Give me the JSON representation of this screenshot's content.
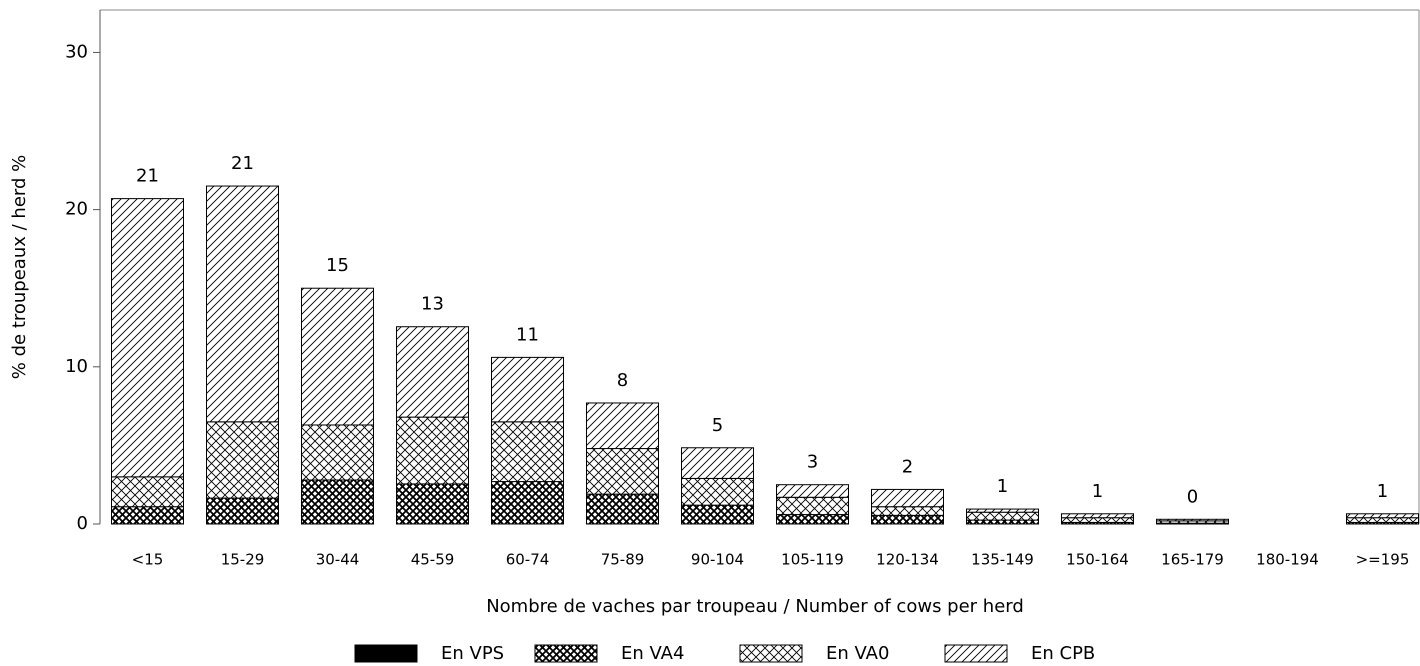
{
  "chart_data": {
    "type": "stacked_bar",
    "xlabel": "Nombre de vaches par troupeau / Number of cows per herd",
    "ylabel": "% de troupeaux / herd %",
    "categories": [
      "<15",
      "15-29",
      "30-44",
      "45-59",
      "60-74",
      "75-89",
      "90-104",
      "105-119",
      "120-134",
      "135-149",
      "150-164",
      "165-179",
      "180-194",
      ">=195"
    ],
    "series": [
      {
        "name": "En VPS",
        "color": "#000000",
        "pattern": "solid",
        "values": [
          0,
          0,
          0,
          0,
          0,
          0,
          0,
          0,
          0,
          0,
          0,
          0,
          0,
          0
        ]
      },
      {
        "name": "En VA4",
        "color": "#000000",
        "pattern": "crosshatch-dense",
        "values": [
          1.1,
          1.65,
          2.8,
          2.55,
          2.7,
          1.9,
          1.2,
          0.6,
          0.55,
          0.25,
          0.1,
          0.05,
          0,
          0.1
        ]
      },
      {
        "name": "En VA0",
        "color": "#000000",
        "pattern": "crosshatch",
        "values": [
          1.9,
          4.85,
          3.5,
          4.25,
          3.8,
          2.9,
          1.7,
          1.1,
          0.55,
          0.5,
          0.3,
          0.15,
          0,
          0.3
        ]
      },
      {
        "name": "En CPB",
        "color": "#000000",
        "pattern": "diagonal",
        "values": [
          17.7,
          15.0,
          8.7,
          5.75,
          4.1,
          2.9,
          1.95,
          0.8,
          1.1,
          0.2,
          0.25,
          0.1,
          0,
          0.25
        ]
      }
    ],
    "totals": [
      21,
      21,
      15,
      13,
      11,
      8,
      5,
      3,
      2,
      1,
      1,
      0,
      null,
      1
    ],
    "ylim": [
      0,
      32.7
    ],
    "yticks": [
      0,
      10,
      20,
      30
    ],
    "legend": "bottom"
  }
}
